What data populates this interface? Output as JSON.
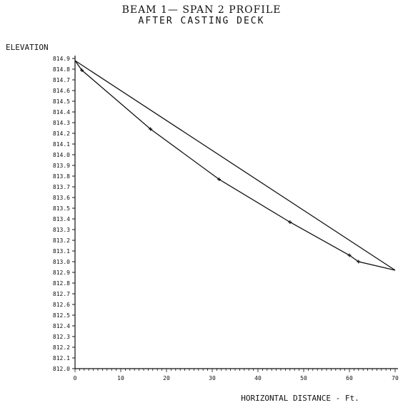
{
  "chart_data": {
    "type": "line",
    "title": "BEAM 1— SPAN 2 PROFILE",
    "subtitle": "AFTER CASTING DECK",
    "xlabel": "HORIZONTAL DISTANCE - Ft.",
    "ylabel": "ELEVATION",
    "xlim": [
      0,
      70
    ],
    "ylim": [
      812.0,
      814.9
    ],
    "x_ticks": [
      0,
      10,
      20,
      30,
      40,
      50,
      60,
      70
    ],
    "y_ticks": [
      "812.0",
      "812.1",
      "812.2",
      "812.3",
      "812.4",
      "812.5",
      "812.6",
      "812.7",
      "812.8",
      "812.9",
      "813.0",
      "813.1",
      "813.2",
      "813.3",
      "813.4",
      "813.5",
      "813.6",
      "813.7",
      "813.8",
      "813.9",
      "814.0",
      "814.1",
      "814.2",
      "814.3",
      "814.4",
      "814.5",
      "814.6",
      "814.7",
      "814.8",
      "814.9"
    ],
    "grid": false,
    "series": [
      {
        "values": [
          {
            "x": 0,
            "y": 814.88
          },
          {
            "x": 70,
            "y": 812.92
          }
        ]
      },
      {
        "values": [
          {
            "x": 0,
            "y": 814.88
          },
          {
            "x": 1.5,
            "y": 814.79
          },
          {
            "x": 16.5,
            "y": 814.24
          },
          {
            "x": 31.5,
            "y": 813.77
          },
          {
            "x": 47,
            "y": 813.37
          },
          {
            "x": 60,
            "y": 813.06
          },
          {
            "x": 62,
            "y": 813.0
          },
          {
            "x": 70,
            "y": 812.92
          }
        ]
      }
    ]
  }
}
